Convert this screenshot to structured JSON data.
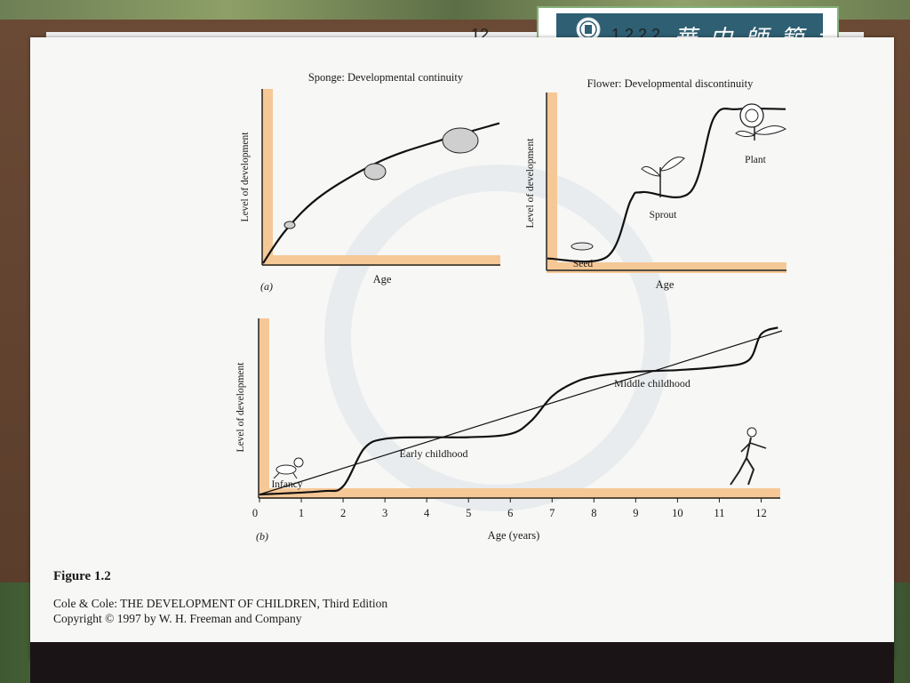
{
  "slide": {
    "page_number_left": "12",
    "page_number_right": "1 2 2 2",
    "logo_text": "華中師範大學"
  },
  "panel_a_left": {
    "title": "Sponge: Developmental continuity",
    "ylabel": "Level of development",
    "xlabel": "Age",
    "panel_label": "(a)"
  },
  "panel_a_right": {
    "title": "Flower: Developmental discontinuity",
    "ylabel": "Level of development",
    "xlabel": "Age",
    "stage_labels": [
      "Seed",
      "Sprout",
      "Plant"
    ]
  },
  "panel_b": {
    "ylabel": "Level of development",
    "xlabel": "Age (years)",
    "panel_label": "(b)",
    "stage_labels": [
      "Infancy",
      "Early childhood",
      "Middle childhood"
    ]
  },
  "caption": {
    "title": "Figure 1.2",
    "line1": "Cole & Cole: THE DEVELOPMENT OF CHILDREN, Third Edition",
    "line2": "Copyright © 1997 by W. H. Freeman and Company"
  },
  "chart_data": [
    {
      "type": "line",
      "title": "Sponge: Developmental continuity",
      "xlabel": "Age",
      "ylabel": "Level of development",
      "series": [
        {
          "x": [
            0,
            0.1,
            0.25,
            0.5,
            0.75,
            1.0
          ],
          "y": [
            0,
            0.2,
            0.4,
            0.6,
            0.72,
            0.82
          ]
        }
      ]
    },
    {
      "type": "line",
      "title": "Flower: Developmental discontinuity",
      "xlabel": "Age",
      "ylabel": "Level of development",
      "series": [
        {
          "x": [
            0,
            0.25,
            0.35,
            0.4,
            0.6,
            0.7,
            0.8,
            1.0
          ],
          "y": [
            0.05,
            0.06,
            0.4,
            0.45,
            0.45,
            0.9,
            0.95,
            0.95
          ]
        }
      ]
    },
    {
      "type": "line",
      "xlabel": "Age (years)",
      "ylabel": "Level of development",
      "x_ticks": [
        0,
        1,
        2,
        3,
        4,
        5,
        6,
        7,
        8,
        9,
        10,
        11,
        12
      ],
      "xlim": [
        0,
        12.5
      ],
      "series": [
        {
          "x": [
            0,
            12.5
          ],
          "y": [
            0,
            1.0
          ]
        },
        {
          "x": [
            0,
            1.5,
            2,
            2.5,
            3,
            4,
            5,
            6,
            6.5,
            7,
            7.5,
            8,
            9,
            10,
            11,
            11.7,
            12,
            12.4
          ],
          "y": [
            0,
            0.02,
            0.05,
            0.28,
            0.34,
            0.35,
            0.35,
            0.37,
            0.45,
            0.6,
            0.68,
            0.72,
            0.75,
            0.76,
            0.78,
            0.82,
            0.98,
            1.02
          ]
        }
      ]
    }
  ]
}
